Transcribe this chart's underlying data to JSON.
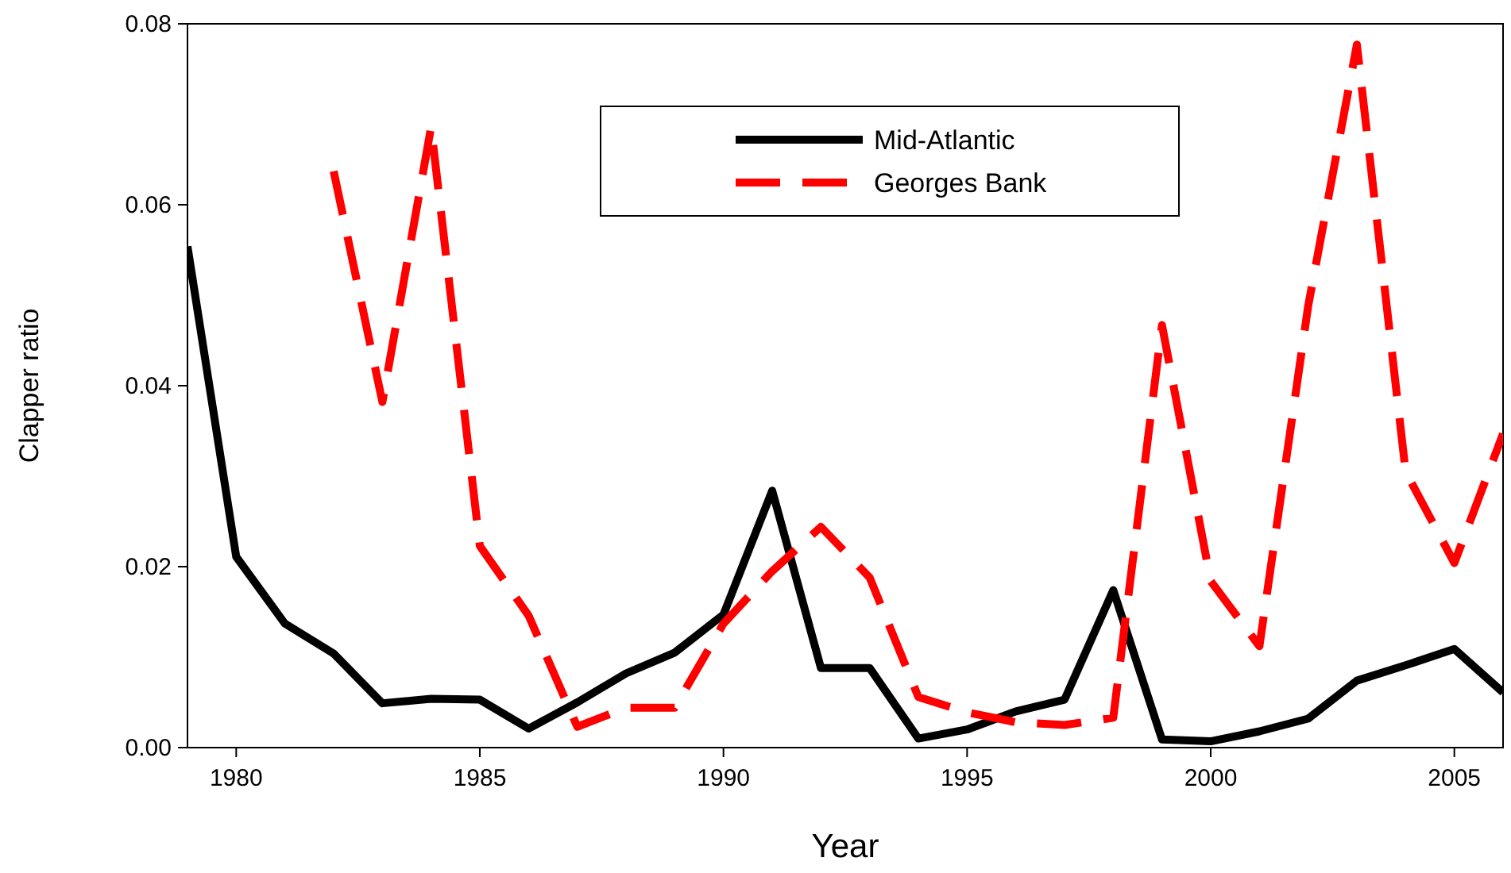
{
  "chart_data": {
    "type": "line",
    "xlabel": "Year",
    "ylabel": "Clapper ratio",
    "xlim": [
      1979,
      2006
    ],
    "xticks": [
      1980,
      1985,
      1990,
      1995,
      2000,
      2005
    ],
    "ylim": [
      0,
      0.08
    ],
    "yticks": [
      {
        "value": 0,
        "label": "0.00"
      },
      {
        "value": 0.02,
        "label": "0.02"
      },
      {
        "value": 0.04,
        "label": "0.04"
      },
      {
        "value": 0.06,
        "label": "0.06"
      },
      {
        "value": 0.08,
        "label": "0.08"
      }
    ],
    "grid": false,
    "legend": "top",
    "marker": "none",
    "series": [
      {
        "name": "Mid-Atlantic",
        "color": "#000000",
        "line_style": "solid",
        "x": [
          1979,
          1980,
          1981,
          1982,
          1983,
          1984,
          1985,
          1986,
          1987,
          1988,
          1989,
          1990,
          1991,
          1992,
          1993,
          1994,
          1995,
          1996,
          1997,
          1998,
          1999,
          2000,
          2001,
          2002,
          2003,
          2004,
          2005,
          2006
        ],
        "values": [
          0.0554,
          0.0211,
          0.0137,
          0.0104,
          0.0049,
          0.0054,
          0.0053,
          0.0021,
          0.005,
          0.0082,
          0.0105,
          0.0147,
          0.0284,
          0.0088,
          0.0088,
          0.001,
          0.002,
          0.004,
          0.0053,
          0.0174,
          0.0009,
          0.0007,
          0.0018,
          0.0032,
          0.0074,
          0.0091,
          0.0109,
          0.0061
        ]
      },
      {
        "name": "Georges Bank",
        "color": "#ff0000",
        "line_style": "dashed",
        "x": [
          1982,
          1983,
          1984,
          1985,
          1986,
          1987,
          1988,
          1989,
          1990,
          1991,
          1992,
          1993,
          1994,
          1995,
          1996,
          1997,
          1998,
          1999,
          2000,
          2001,
          2002,
          2003,
          2004,
          2005,
          2006
        ],
        "values": [
          0.0637,
          0.0382,
          0.0686,
          0.0223,
          0.0146,
          0.0023,
          0.0044,
          0.0044,
          0.0137,
          0.0195,
          0.0244,
          0.0188,
          0.0056,
          0.0039,
          0.0028,
          0.0025,
          0.0033,
          0.0467,
          0.0184,
          0.0112,
          0.0488,
          0.0777,
          0.0305,
          0.0204,
          0.0347
        ]
      }
    ]
  }
}
